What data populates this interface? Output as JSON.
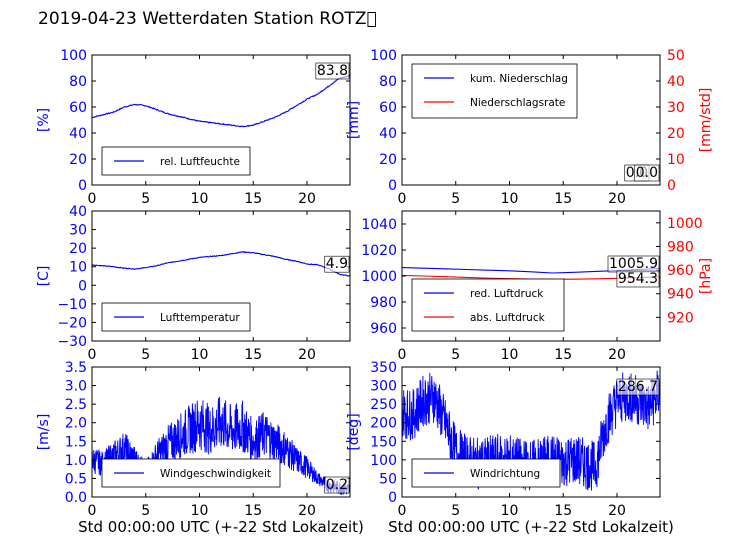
{
  "title": "2019-04-23 Wetterdaten Station ROTZ\u0000",
  "colors": {
    "left_axis": "#0000ff",
    "right_axis": "#ff0000",
    "black": "#000000"
  },
  "chart_data": [
    {
      "name": "humidity",
      "type": "line",
      "xlim": [
        0,
        24
      ],
      "ylim": [
        0,
        100
      ],
      "xticks": [
        0,
        5,
        10,
        15,
        20
      ],
      "yticks": [
        0,
        20,
        40,
        60,
        80,
        100
      ],
      "ylabel": "[%]",
      "legend": {
        "placement": "lower-left",
        "entries": [
          "rel. Luftfeuchte"
        ]
      },
      "last_value_label": "83.8",
      "series": [
        {
          "name": "rel. Luftfeuchte",
          "color": "#0000ff",
          "x": [
            0,
            1,
            2,
            3,
            4,
            5,
            6,
            7,
            8,
            9,
            10,
            11,
            12,
            13,
            14,
            15,
            16,
            17,
            18,
            19,
            20,
            21,
            22,
            23,
            24
          ],
          "y": [
            52,
            54,
            56,
            60,
            62,
            61,
            58,
            55,
            53,
            51,
            49,
            48,
            47,
            46,
            45,
            46,
            49,
            52,
            56,
            61,
            66,
            70,
            76,
            82,
            84
          ]
        }
      ]
    },
    {
      "name": "precipitation",
      "type": "line",
      "xlim": [
        0,
        24
      ],
      "ylim": [
        0,
        100
      ],
      "ylim_right": [
        0,
        50
      ],
      "xticks": [
        0,
        5,
        10,
        15,
        20
      ],
      "yticks": [
        0,
        20,
        40,
        60,
        80,
        100
      ],
      "yticks_right": [
        0,
        10,
        20,
        30,
        40,
        50
      ],
      "ylabel": "[mm]",
      "ylabel_right": "[mm/std]",
      "legend": {
        "placement": "upper-left",
        "entries": [
          "kum. Niederschlag",
          "Niederschlagsrate"
        ]
      },
      "last_value_labels": [
        "0.0",
        "0.0"
      ],
      "series": [
        {
          "name": "kum. Niederschlag",
          "color": "#0000ff",
          "x": [
            0,
            24
          ],
          "y": [
            0,
            0
          ]
        },
        {
          "name": "Niederschlagsrate",
          "color": "#ff0000",
          "axis": "right",
          "x": [
            0,
            24
          ],
          "y": [
            0,
            0
          ]
        }
      ]
    },
    {
      "name": "temperature",
      "type": "line",
      "xlim": [
        0,
        24
      ],
      "ylim": [
        -30,
        40
      ],
      "xticks": [
        0,
        5,
        10,
        15,
        20
      ],
      "yticks": [
        -30,
        -20,
        -10,
        0,
        10,
        20,
        30,
        40
      ],
      "ylabel": "[C]",
      "legend": {
        "placement": "lower-left",
        "entries": [
          "Lufttemperatur"
        ]
      },
      "last_value_label": "4.9",
      "series": [
        {
          "name": "Lufttemperatur",
          "color": "#0000ff",
          "x": [
            0,
            1,
            2,
            3,
            4,
            5,
            6,
            7,
            8,
            9,
            10,
            11,
            12,
            13,
            14,
            15,
            16,
            17,
            18,
            19,
            20,
            21,
            22,
            23,
            24
          ],
          "y": [
            11,
            10.5,
            10,
            9.2,
            8.8,
            9.5,
            10.5,
            12,
            13,
            14,
            15,
            15.5,
            16,
            17,
            18,
            17.5,
            16.5,
            15.5,
            14,
            13,
            11.5,
            11,
            9,
            6,
            4.9
          ]
        }
      ]
    },
    {
      "name": "pressure",
      "type": "line",
      "xlim": [
        0,
        24
      ],
      "ylim": [
        950,
        1050
      ],
      "ylim_right": [
        900,
        1010
      ],
      "xticks": [
        0,
        5,
        10,
        15,
        20
      ],
      "yticks": [
        960,
        980,
        1000,
        1020,
        1040
      ],
      "yticks_right": [
        920,
        940,
        960,
        980,
        1000
      ],
      "ylabel_right": "[hPa]",
      "legend": {
        "placement": "lower-left",
        "entries": [
          "red. Luftdruck",
          "abs. Luftdruck"
        ]
      },
      "last_value_labels": [
        "1005.9",
        "954.3"
      ],
      "series": [
        {
          "name": "red. Luftdruck",
          "color": "#0000ff",
          "x": [
            0,
            2,
            4,
            6,
            8,
            10,
            12,
            14,
            16,
            18,
            20,
            22,
            24
          ],
          "y": [
            1006.5,
            1006,
            1005.5,
            1005,
            1004.5,
            1004,
            1003.2,
            1002.3,
            1002.8,
            1003.5,
            1004.2,
            1005,
            1005.9
          ]
        },
        {
          "name": "abs. Luftdruck",
          "color": "#ff0000",
          "axis": "right",
          "x": [
            0,
            2,
            4,
            6,
            8,
            10,
            12,
            14,
            16,
            18,
            20,
            22,
            24
          ],
          "y": [
            955.5,
            955,
            954.4,
            953.8,
            953.2,
            952.7,
            952.4,
            952.2,
            952.3,
            952.6,
            953,
            953.6,
            954.3
          ]
        }
      ]
    },
    {
      "name": "wind_speed",
      "type": "line",
      "xlim": [
        0,
        24
      ],
      "ylim": [
        0,
        3.5
      ],
      "xticks": [
        0,
        5,
        10,
        15,
        20
      ],
      "yticks": [
        0.0,
        0.5,
        1.0,
        1.5,
        2.0,
        2.5,
        3.0,
        3.5
      ],
      "ylabel": "[m/s]",
      "xlabel": "Std 00:00:00 UTC (+-22 Std Lokalzeit)",
      "legend": {
        "placement": "lower-center",
        "entries": [
          "Windgeschwindigkeit"
        ]
      },
      "last_value_label": "0.2",
      "series": [
        {
          "name": "Windgeschwindigkeit",
          "color": "#0000ff",
          "x": [
            0,
            1,
            2,
            3,
            4,
            5,
            6,
            7,
            8,
            9,
            10,
            11,
            12,
            13,
            14,
            15,
            16,
            17,
            18,
            19,
            20,
            21,
            22,
            23,
            24
          ],
          "y": [
            1.0,
            0.9,
            1.1,
            1.3,
            1.0,
            0.7,
            1.1,
            1.4,
            1.6,
            1.8,
            2.0,
            1.8,
            2.0,
            1.8,
            1.9,
            1.5,
            1.7,
            1.5,
            1.3,
            1.0,
            0.8,
            0.5,
            0.3,
            0.25,
            0.2
          ]
        }
      ]
    },
    {
      "name": "wind_direction",
      "type": "line",
      "xlim": [
        0,
        24
      ],
      "ylim": [
        0,
        350
      ],
      "xticks": [
        0,
        5,
        10,
        15,
        20
      ],
      "yticks": [
        0,
        50,
        100,
        150,
        200,
        250,
        300,
        350
      ],
      "ylabel": "[deg]",
      "xlabel": "Std 00:00:00 UTC (+-22 Std Lokalzeit)",
      "legend": {
        "placement": "lower-left",
        "entries": [
          "Windrichtung"
        ]
      },
      "last_value_label": "286.7",
      "series": [
        {
          "name": "Windrichtung",
          "color": "#0000ff",
          "x": [
            0,
            1,
            2,
            3,
            4,
            5,
            6,
            7,
            8,
            9,
            10,
            11,
            12,
            13,
            14,
            15,
            16,
            17,
            18,
            19,
            20,
            21,
            22,
            23,
            24
          ],
          "y": [
            230,
            220,
            260,
            270,
            200,
            120,
            100,
            90,
            95,
            100,
            100,
            90,
            85,
            95,
            100,
            95,
            100,
            90,
            80,
            200,
            260,
            270,
            260,
            240,
            287
          ]
        }
      ]
    }
  ]
}
